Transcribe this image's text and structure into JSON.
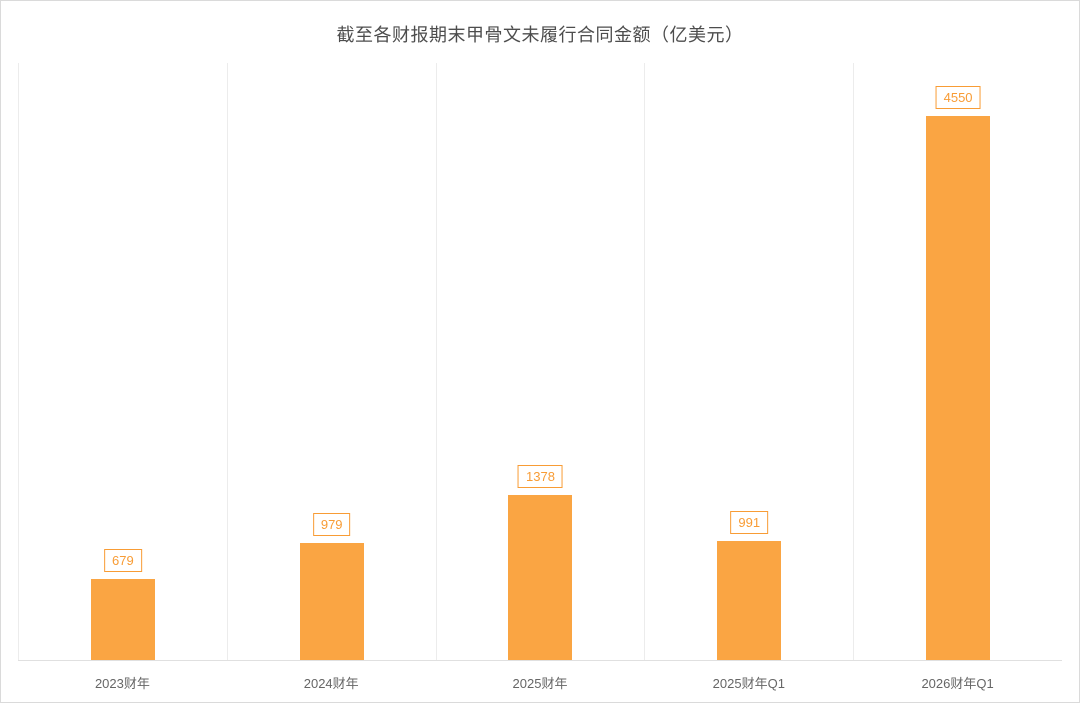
{
  "chart_data": {
    "type": "bar",
    "title": "截至各财报期末甲骨文未履行合同金额（亿美元）",
    "categories": [
      "2023财年",
      "2024财年",
      "2025财年",
      "2025财年Q1",
      "2026财年Q1"
    ],
    "values": [
      679,
      979,
      1378,
      991,
      4550
    ],
    "xlabel": "",
    "ylabel": "",
    "ylim": [
      0,
      5000
    ],
    "grid": "vertical split lines only, no horizontal gridlines, no y-axis ticks",
    "legend": "none",
    "value_labels": "boxed labels above each bar"
  },
  "colors": {
    "bar": "#faa543",
    "label": "#f89c35",
    "grid_line": "#ececec",
    "axis_line": "#e0e0e0",
    "title_text": "#4d4d4d",
    "category_text": "#666666",
    "page_border": "#dadada",
    "background": "#ffffff"
  }
}
